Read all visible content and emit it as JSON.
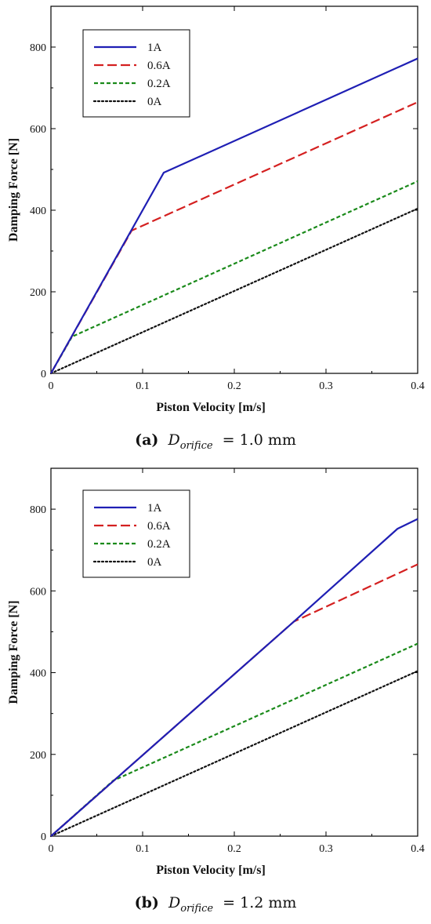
{
  "chart_data": [
    {
      "type": "line",
      "xlabel": "Piston Velocity [m/s]",
      "ylabel": "Damping Force [N]",
      "xlim": [
        0,
        0.4
      ],
      "ylim": [
        0,
        900
      ],
      "xticks": [
        "0",
        "0.1",
        "0.2",
        "0.3",
        "0.4"
      ],
      "yticks": [
        "0",
        "200",
        "400",
        "600",
        "800"
      ],
      "xtick_values": [
        0,
        0.1,
        0.2,
        0.3,
        0.4
      ],
      "ytick_values": [
        0,
        200,
        400,
        600,
        800
      ],
      "legend_position": "top-left",
      "grid": false,
      "series": [
        {
          "name": "1A",
          "color": "#1f1fb4",
          "style": "solid",
          "x": [
            0,
            0.123,
            0.4
          ],
          "y": [
            0,
            492,
            772
          ]
        },
        {
          "name": "0.6A",
          "color": "#d42020",
          "style": "dashed",
          "x": [
            0,
            0.088,
            0.4
          ],
          "y": [
            0,
            350,
            665
          ]
        },
        {
          "name": "0.2A",
          "color": "#1a8a1a",
          "style": "shortdash",
          "x": [
            0,
            0.023,
            0.4
          ],
          "y": [
            0,
            90,
            471
          ]
        },
        {
          "name": "0A",
          "color": "#111111",
          "style": "dotted",
          "x": [
            0,
            0.4
          ],
          "y": [
            0,
            404
          ]
        }
      ],
      "caption": {
        "label": "(a)",
        "symbol": "D",
        "subscript": "orifice",
        "value": "= 1.0 mm"
      }
    },
    {
      "type": "line",
      "xlabel": "Piston Velocity [m/s]",
      "ylabel": "Damping Force [N]",
      "xlim": [
        0,
        0.4
      ],
      "ylim": [
        0,
        900
      ],
      "xticks": [
        "0",
        "0.1",
        "0.2",
        "0.3",
        "0.4"
      ],
      "yticks": [
        "0",
        "200",
        "400",
        "600",
        "800"
      ],
      "xtick_values": [
        0,
        0.1,
        0.2,
        0.3,
        0.4
      ],
      "ytick_values": [
        0,
        200,
        400,
        600,
        800
      ],
      "legend_position": "top-left",
      "grid": false,
      "series": [
        {
          "name": "1A",
          "color": "#1f1fb4",
          "style": "solid",
          "x": [
            0,
            0.265,
            0.378,
            0.4
          ],
          "y": [
            0,
            525,
            752,
            776
          ]
        },
        {
          "name": "0.6A",
          "color": "#d42020",
          "style": "dashed",
          "x": [
            0,
            0.265,
            0.4
          ],
          "y": [
            0,
            525,
            665
          ]
        },
        {
          "name": "0.2A",
          "color": "#1a8a1a",
          "style": "shortdash",
          "x": [
            0,
            0.068,
            0.4
          ],
          "y": [
            0,
            136,
            471
          ]
        },
        {
          "name": "0A",
          "color": "#111111",
          "style": "dotted",
          "x": [
            0,
            0.4
          ],
          "y": [
            0,
            404
          ]
        }
      ],
      "caption": {
        "label": "(b)",
        "symbol": "D",
        "subscript": "orifice",
        "value": "= 1.2 mm"
      }
    }
  ]
}
